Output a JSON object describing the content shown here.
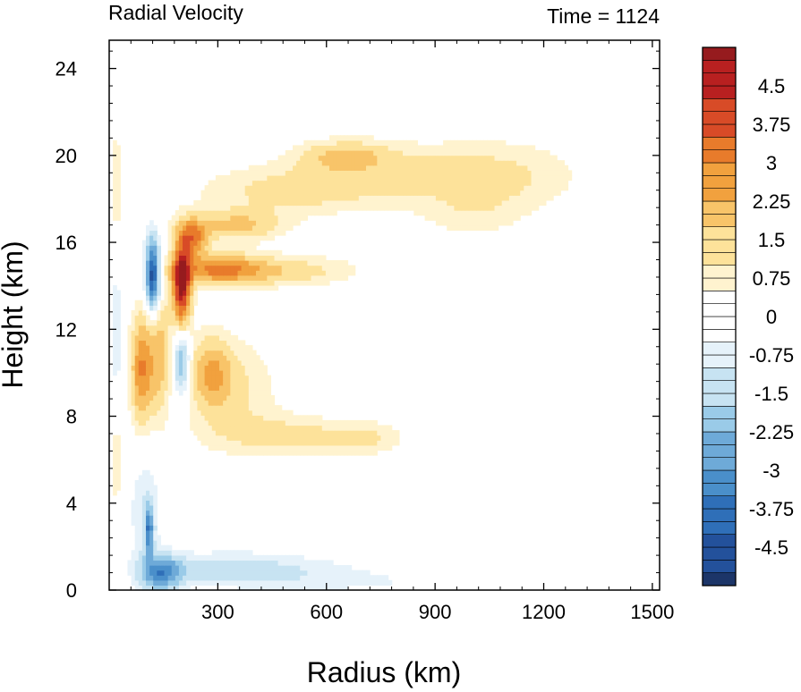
{
  "chart_data": {
    "type": "heatmap",
    "title_left": "Radial Velocity",
    "title_right": "Time = 1124",
    "xlabel": "Radius (km)",
    "ylabel": "Height (km)",
    "xlim": [
      0,
      1520
    ],
    "ylim": [
      0,
      25.3
    ],
    "xticks": [
      300,
      600,
      900,
      1200,
      1500
    ],
    "yticks": [
      0,
      4,
      8,
      12,
      16,
      20,
      24
    ],
    "colorbar": {
      "min": -5.25,
      "max": 5.25,
      "step": 0.25,
      "labels": [
        "4.5",
        "3.75",
        "3",
        "2.25",
        "1.5",
        "0.75",
        "0",
        "-0.75",
        "-1.5",
        "-2.25",
        "-3",
        "-3.75",
        "-4.5"
      ],
      "label_values": [
        4.5,
        3.75,
        3,
        2.25,
        1.5,
        0.75,
        0,
        -0.75,
        -1.5,
        -2.25,
        -3,
        -3.75,
        -4.5
      ]
    },
    "palette": [
      "#1c3568",
      "#23519b",
      "#2f6fb8",
      "#4a8fca",
      "#6eaad8",
      "#9acbe8",
      "#c7e3f2",
      "#e6f2fa",
      "#ffffff",
      "#fff3cf",
      "#fde29a",
      "#f8c469",
      "#f1a13e",
      "#e87b2b",
      "#d84b27",
      "#b82020",
      "#961b1e"
    ],
    "features": [
      {
        "r": 120,
        "z": 14.5,
        "v": -5.0,
        "sr": 14,
        "sz": 1.2
      },
      {
        "r": 200,
        "z": 14.0,
        "v": 5.0,
        "sr": 18,
        "sz": 1.3
      },
      {
        "r": 230,
        "z": 16.2,
        "v": 3.0,
        "sr": 30,
        "sz": 0.6
      },
      {
        "r": 300,
        "z": 14.8,
        "v": 2.5,
        "sr": 80,
        "sz": 0.5
      },
      {
        "r": 460,
        "z": 14.7,
        "v": 1.5,
        "sr": 150,
        "sz": 0.5
      },
      {
        "r": 350,
        "z": 16.8,
        "v": 1.8,
        "sr": 90,
        "sz": 0.5
      },
      {
        "r": 500,
        "z": 18.4,
        "v": 1.2,
        "sr": 180,
        "sz": 0.8
      },
      {
        "r": 650,
        "z": 20.0,
        "v": 1.6,
        "sr": 90,
        "sz": 0.5
      },
      {
        "r": 850,
        "z": 19.2,
        "v": 0.9,
        "sr": 200,
        "sz": 1.0
      },
      {
        "r": 1100,
        "z": 19.0,
        "v": 0.8,
        "sr": 150,
        "sz": 1.2
      },
      {
        "r": 1000,
        "z": 17.2,
        "v": 0.6,
        "sr": 100,
        "sz": 0.8
      },
      {
        "r": 90,
        "z": 10.2,
        "v": 3.0,
        "sr": 22,
        "sz": 1.8
      },
      {
        "r": 140,
        "z": 11.0,
        "v": 2.0,
        "sr": 20,
        "sz": 2.0
      },
      {
        "r": 200,
        "z": 10.5,
        "v": -2.5,
        "sr": 16,
        "sz": 1.0
      },
      {
        "r": 280,
        "z": 10.0,
        "v": 2.0,
        "sr": 40,
        "sz": 1.2
      },
      {
        "r": 350,
        "z": 9.5,
        "v": 1.0,
        "sr": 80,
        "sz": 1.5
      },
      {
        "r": 420,
        "z": 7.2,
        "v": 0.8,
        "sr": 140,
        "sz": 0.8
      },
      {
        "r": 600,
        "z": 7.0,
        "v": 0.8,
        "sr": 130,
        "sz": 0.6
      },
      {
        "r": 720,
        "z": 7.0,
        "v": 0.6,
        "sr": 60,
        "sz": 0.5
      },
      {
        "r": 100,
        "z": 3.5,
        "v": -1.0,
        "sr": 30,
        "sz": 2.0
      },
      {
        "r": 145,
        "z": 0.8,
        "v": -3.0,
        "sr": 40,
        "sz": 0.6
      },
      {
        "r": 300,
        "z": 1.0,
        "v": -1.2,
        "sr": 120,
        "sz": 0.5
      },
      {
        "r": 500,
        "z": 0.8,
        "v": -0.8,
        "sr": 150,
        "sz": 0.6
      },
      {
        "r": 750,
        "z": 0.4,
        "v": -0.4,
        "sr": 150,
        "sz": 0.4
      },
      {
        "r": 20,
        "z": 6.0,
        "v": 1.0,
        "sr": 12,
        "sz": 1.5
      },
      {
        "r": 20,
        "z": 12.0,
        "v": -0.8,
        "sr": 10,
        "sz": 3.0
      },
      {
        "r": 20,
        "z": 18.5,
        "v": 1.0,
        "sr": 10,
        "sz": 2.0
      },
      {
        "r": 110,
        "z": 2.8,
        "v": -3.0,
        "sr": 8,
        "sz": 0.8
      }
    ]
  }
}
